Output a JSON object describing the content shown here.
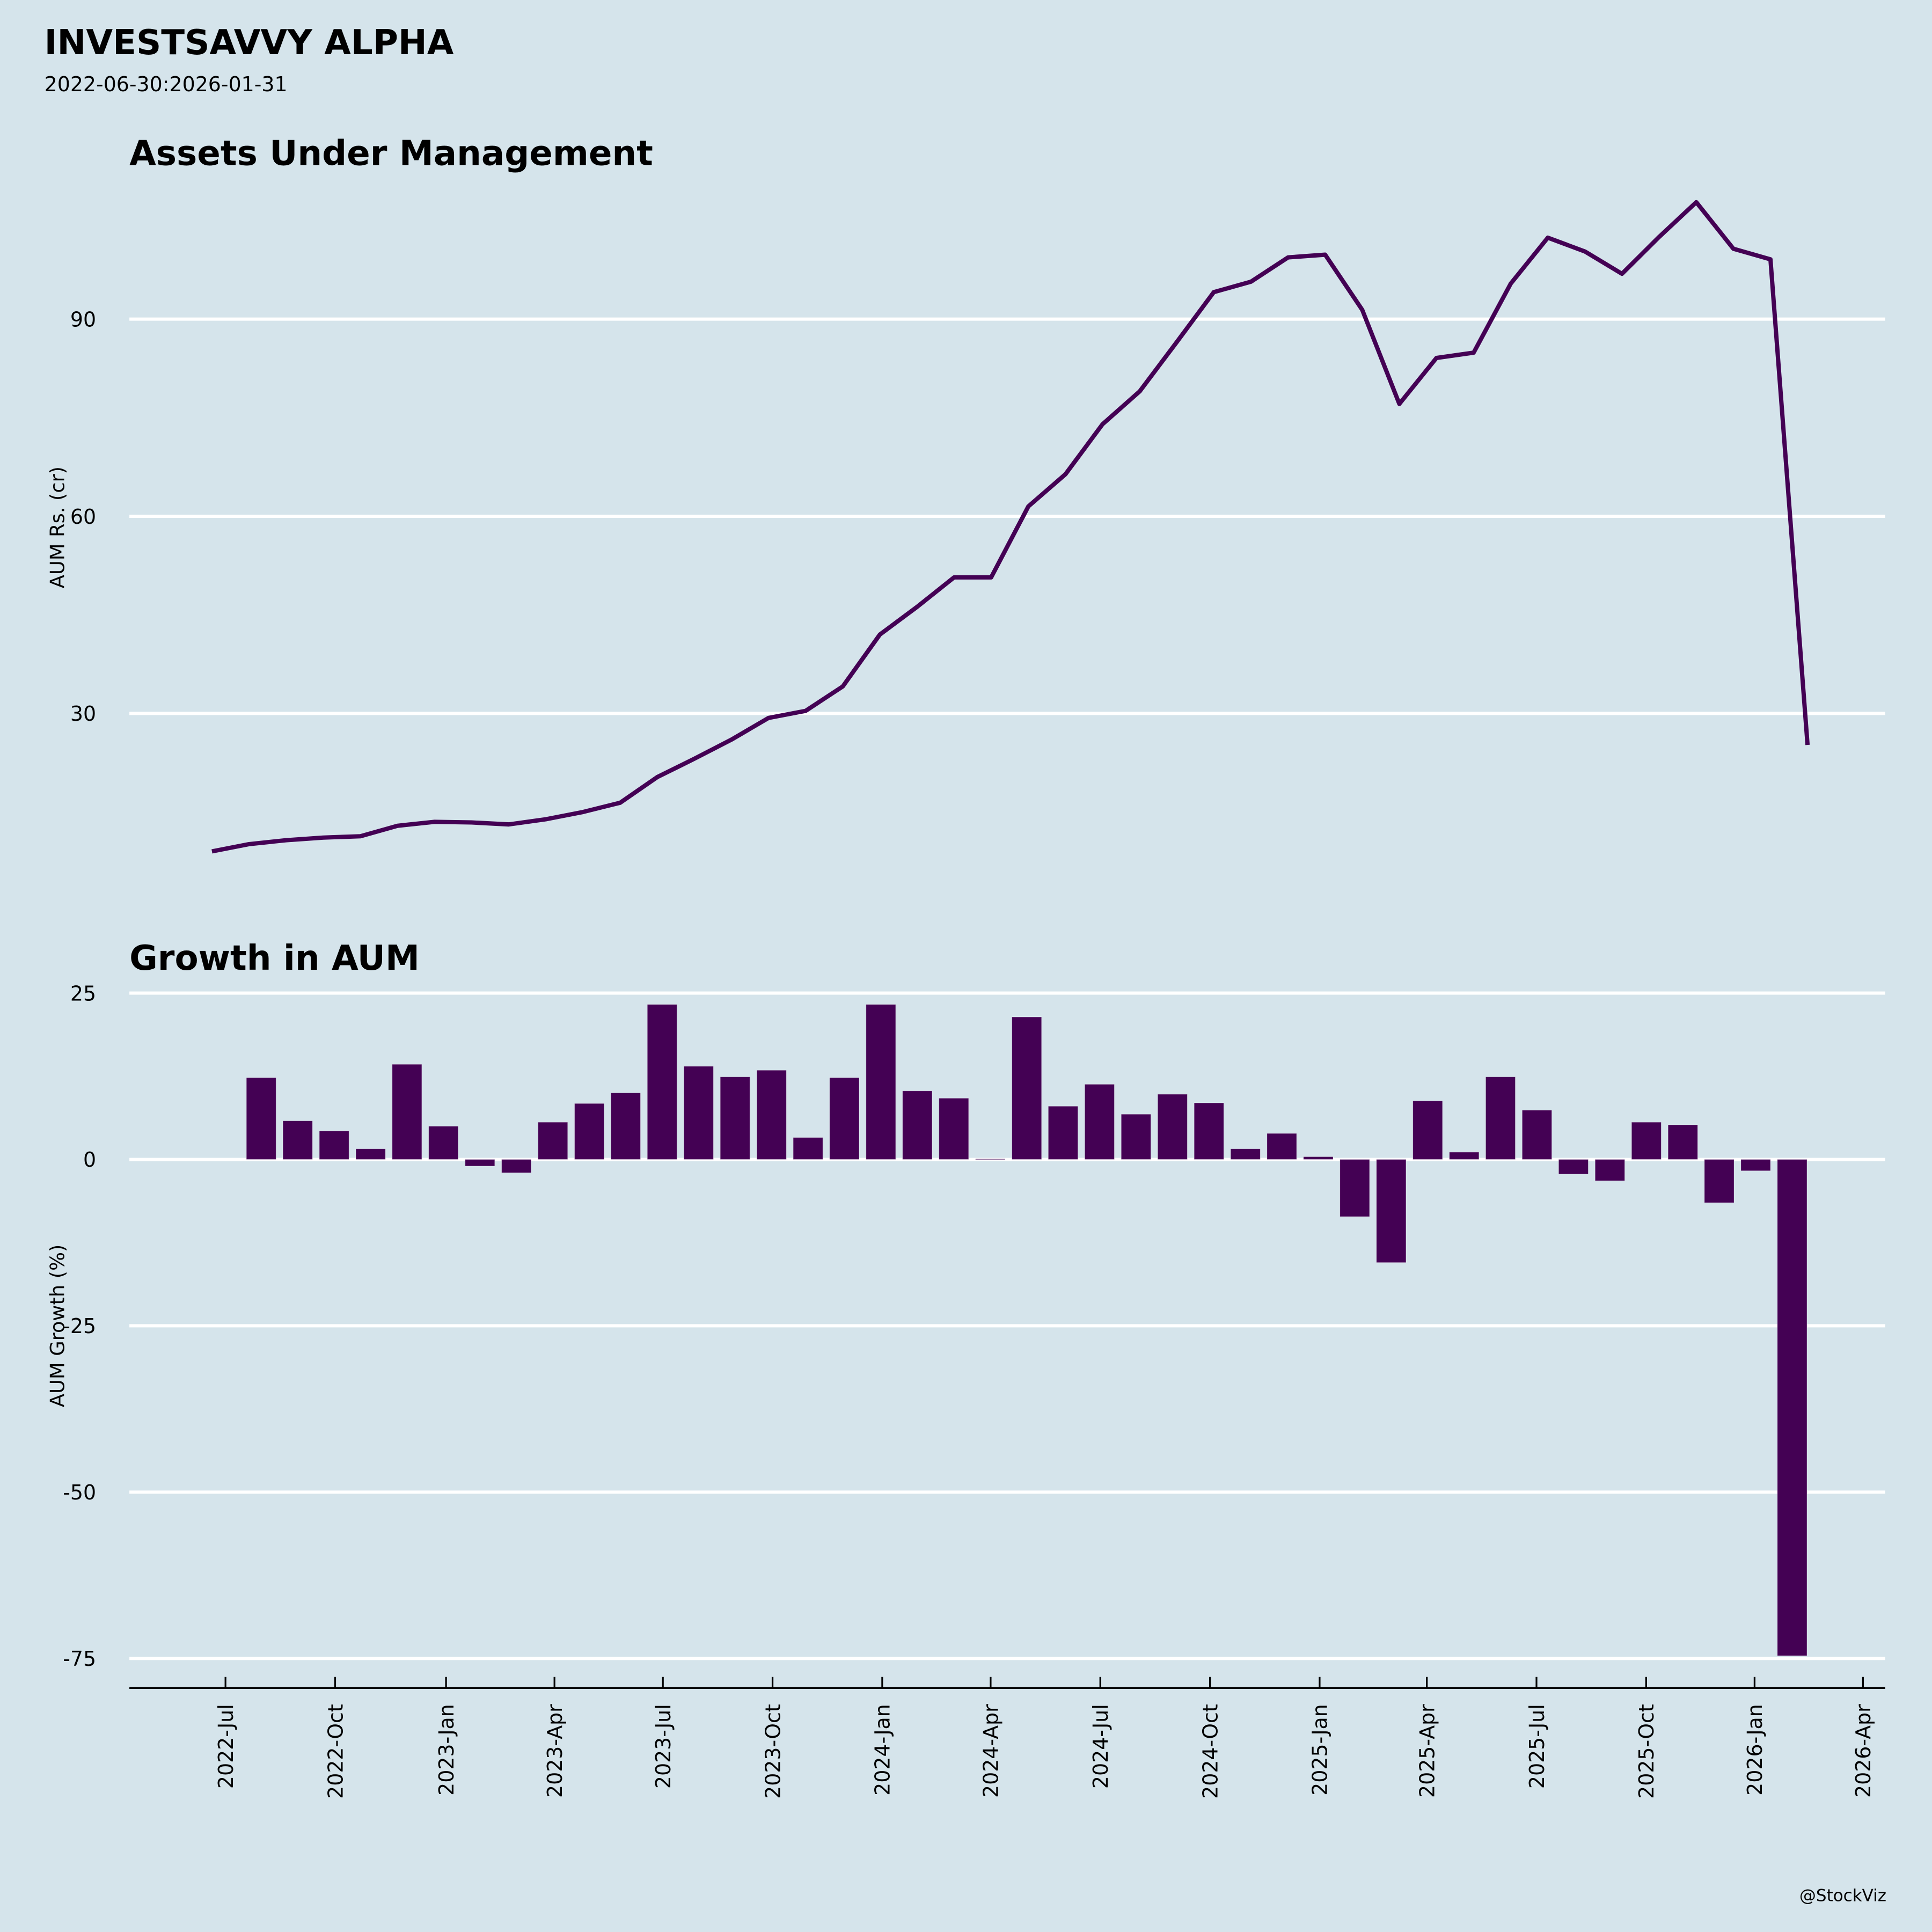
{
  "header": {
    "title": "INVESTSAVVY ALPHA",
    "date_range": "2022-06-30:2026-01-31"
  },
  "footer": {
    "credit": "@StockViz"
  },
  "colors": {
    "background": "#d5e4eb",
    "series": "#440154",
    "grid": "#ffffff"
  },
  "chart_data": [
    {
      "type": "line",
      "title": "Assets Under Management",
      "xlabel": "",
      "ylabel": "AUM Rs. (cr)",
      "yticks": [
        30,
        60,
        90
      ],
      "ylim": [
        0,
        115
      ],
      "grid": true,
      "x": [
        "2022-06",
        "2022-07",
        "2022-08",
        "2022-09",
        "2022-10",
        "2022-11",
        "2022-12",
        "2023-01",
        "2023-02",
        "2023-03",
        "2023-04",
        "2023-05",
        "2023-06",
        "2023-07",
        "2023-08",
        "2023-09",
        "2023-10",
        "2023-11",
        "2023-12",
        "2024-01",
        "2024-02",
        "2024-03",
        "2024-04",
        "2024-05",
        "2024-06",
        "2024-07",
        "2024-08",
        "2024-09",
        "2024-10",
        "2024-11",
        "2024-12",
        "2025-01",
        "2025-02",
        "2025-03",
        "2025-04",
        "2025-05",
        "2025-06",
        "2025-07",
        "2025-08",
        "2025-09",
        "2025-10",
        "2025-11",
        "2025-12",
        "2026-01"
      ],
      "series": [
        {
          "name": "AUM",
          "values": [
            9.0,
            10.1,
            10.7,
            11.1,
            11.3,
            12.9,
            13.5,
            13.4,
            13.1,
            13.9,
            15.0,
            16.4,
            20.3,
            23.1,
            26.0,
            29.3,
            30.4,
            34.1,
            42.0,
            46.2,
            50.7,
            50.7,
            61.5,
            66.4,
            74.0,
            79.0,
            86.5,
            94.1,
            95.7,
            99.4,
            99.8,
            91.4,
            77.1,
            84.1,
            84.9,
            95.4,
            102.4,
            100.3,
            96.9,
            102.5,
            107.8,
            100.7,
            99.1,
            25.2
          ]
        }
      ]
    },
    {
      "type": "bar",
      "title": "Growth in AUM",
      "xlabel": "",
      "ylabel": "AUM Growth (%)",
      "yticks": [
        25,
        0,
        -25,
        -50,
        -75
      ],
      "ylim": [
        -77,
        27
      ],
      "grid": true,
      "categories": [
        "2022-07",
        "2022-08",
        "2022-09",
        "2022-10",
        "2022-11",
        "2022-12",
        "2023-01",
        "2023-02",
        "2023-03",
        "2023-04",
        "2023-05",
        "2023-06",
        "2023-07",
        "2023-08",
        "2023-09",
        "2023-10",
        "2023-11",
        "2023-12",
        "2024-01",
        "2024-02",
        "2024-03",
        "2024-04",
        "2024-05",
        "2024-06",
        "2024-07",
        "2024-08",
        "2024-09",
        "2024-10",
        "2024-11",
        "2024-12",
        "2025-01",
        "2025-02",
        "2025-03",
        "2025-04",
        "2025-05",
        "2025-06",
        "2025-07",
        "2025-08",
        "2025-09",
        "2025-10",
        "2025-11",
        "2025-12",
        "2026-01"
      ],
      "values": [
        12.3,
        5.8,
        4.3,
        1.6,
        14.3,
        5.0,
        -1.0,
        -2.0,
        5.6,
        8.4,
        10.0,
        23.3,
        14.0,
        12.4,
        13.4,
        3.3,
        12.3,
        23.3,
        10.3,
        9.2,
        0.1,
        21.4,
        8.0,
        11.3,
        6.8,
        9.8,
        8.5,
        1.6,
        3.9,
        0.4,
        -8.6,
        -15.5,
        8.8,
        1.1,
        12.4,
        7.4,
        -2.2,
        -3.2,
        5.6,
        5.2,
        -6.5,
        -1.7,
        -74.6
      ],
      "xticks": [
        "2022-Jul",
        "2022-Oct",
        "2023-Jan",
        "2023-Apr",
        "2023-Jul",
        "2023-Oct",
        "2024-Jan",
        "2024-Apr",
        "2024-Jul",
        "2024-Oct",
        "2025-Jan",
        "2025-Apr",
        "2025-Jul",
        "2025-Oct",
        "2026-Jan",
        "2026-Apr"
      ]
    }
  ]
}
